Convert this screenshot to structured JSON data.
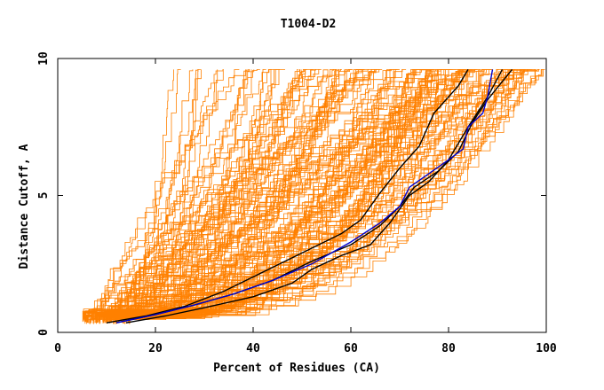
{
  "chart_data": {
    "type": "line",
    "title": "T1004-D2",
    "xlabel": "Percent of Residues (CA)",
    "ylabel": "Distance Cutoff, A",
    "xlim": [
      0,
      100
    ],
    "ylim": [
      0,
      10
    ],
    "x_ticks": [
      "0",
      "20",
      "40",
      "60",
      "80",
      "100"
    ],
    "y_ticks": [
      "0",
      "5",
      "10"
    ],
    "colors": {
      "background": "#ffffff",
      "axis": "#000000",
      "models": "#ff8000",
      "highlight_black": "#000000",
      "highlight_blue": "#0000cc"
    },
    "highlight_series": [
      {
        "name": "black-curve-1",
        "color": "#000000",
        "points": [
          [
            10,
            0.35
          ],
          [
            18,
            0.6
          ],
          [
            26,
            0.95
          ],
          [
            34,
            1.5
          ],
          [
            42,
            2.2
          ],
          [
            50,
            2.9
          ],
          [
            58,
            3.6
          ],
          [
            62,
            4.1
          ],
          [
            66,
            5.1
          ],
          [
            70,
            6.0
          ],
          [
            74,
            6.8
          ],
          [
            77,
            8.0
          ],
          [
            80,
            8.6
          ],
          [
            82,
            9.0
          ],
          [
            84,
            9.6
          ]
        ]
      },
      {
        "name": "black-curve-2",
        "color": "#000000",
        "points": [
          [
            14,
            0.35
          ],
          [
            22,
            0.6
          ],
          [
            30,
            0.9
          ],
          [
            40,
            1.3
          ],
          [
            48,
            1.8
          ],
          [
            52,
            2.3
          ],
          [
            58,
            2.8
          ],
          [
            64,
            3.2
          ],
          [
            68,
            4.0
          ],
          [
            72,
            5.0
          ],
          [
            76,
            5.5
          ],
          [
            80,
            6.3
          ],
          [
            84,
            7.5
          ],
          [
            88,
            8.6
          ],
          [
            91,
            9.6
          ]
        ]
      },
      {
        "name": "black-curve-3",
        "color": "#000000",
        "points": [
          [
            12,
            0.35
          ],
          [
            20,
            0.65
          ],
          [
            28,
            1.0
          ],
          [
            36,
            1.4
          ],
          [
            44,
            1.9
          ],
          [
            52,
            2.6
          ],
          [
            60,
            3.2
          ],
          [
            66,
            3.9
          ],
          [
            70,
            4.6
          ],
          [
            73,
            5.3
          ],
          [
            78,
            5.9
          ],
          [
            82,
            6.6
          ],
          [
            85,
            7.7
          ],
          [
            88,
            8.5
          ],
          [
            93,
            9.6
          ]
        ]
      },
      {
        "name": "blue-curve",
        "color": "#0000cc",
        "points": [
          [
            12,
            0.35
          ],
          [
            20,
            0.65
          ],
          [
            28,
            1.0
          ],
          [
            36,
            1.4
          ],
          [
            44,
            1.9
          ],
          [
            52,
            2.5
          ],
          [
            60,
            3.3
          ],
          [
            66,
            4.0
          ],
          [
            70,
            4.6
          ],
          [
            72,
            5.3
          ],
          [
            76,
            5.8
          ],
          [
            80,
            6.3
          ],
          [
            83,
            6.7
          ],
          [
            84,
            7.5
          ],
          [
            87,
            8.0
          ],
          [
            88,
            8.6
          ],
          [
            89,
            9.6
          ]
        ]
      }
    ]
  }
}
